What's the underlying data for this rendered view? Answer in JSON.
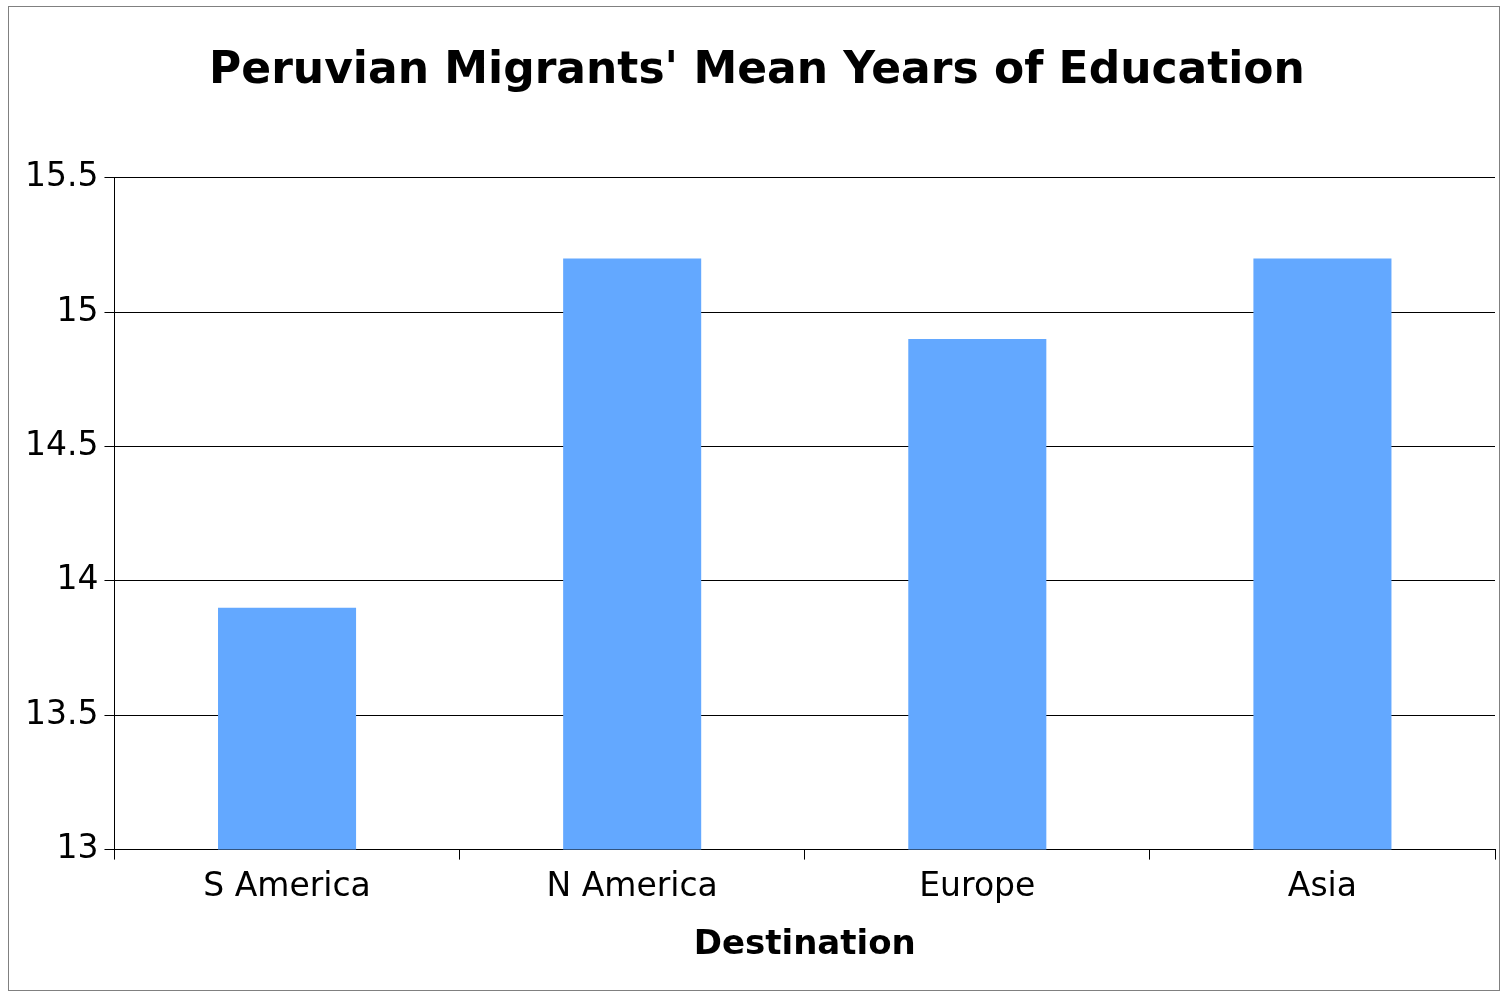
{
  "chart_data": {
    "type": "bar",
    "title": "Peruvian Migrants' Mean Years of Education",
    "xlabel": "Destination",
    "categories": [
      "S America",
      "N America",
      "Europe",
      "Asia"
    ],
    "values": [
      13.9,
      15.2,
      14.9,
      15.2
    ],
    "color": "#63a8ff",
    "ylim": [
      13,
      15.5
    ],
    "yticks": [
      13,
      13.5,
      14,
      14.5,
      15,
      15.5
    ],
    "grid": "y"
  }
}
